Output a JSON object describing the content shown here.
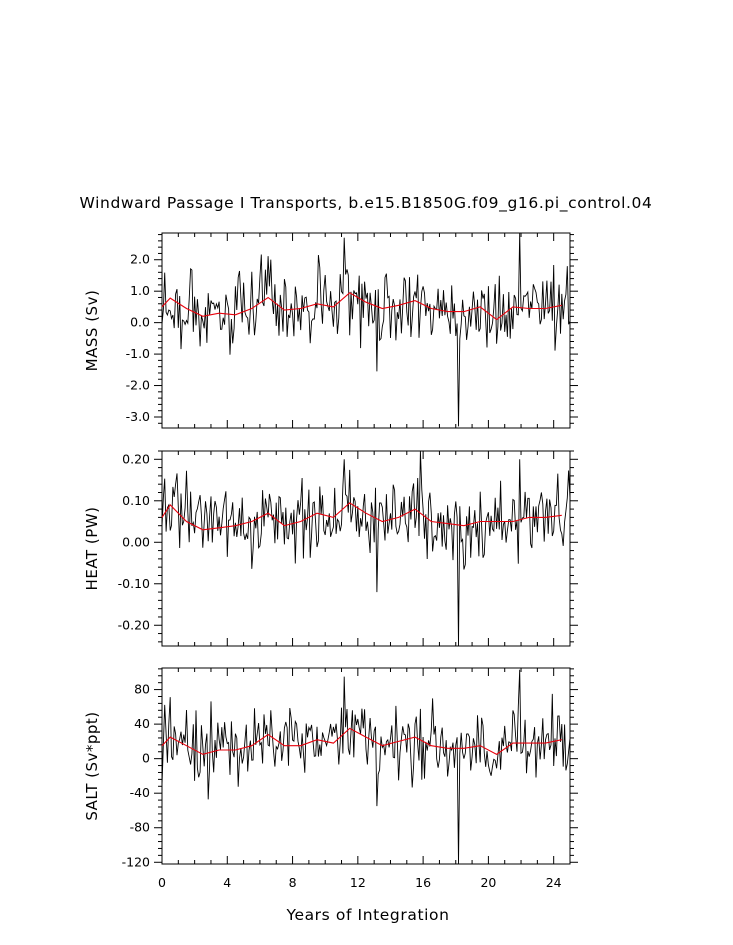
{
  "chart_data": {
    "type": "line",
    "title": "Windward Passage I Transports, b.e15.B1850G.f09_g16.pi_control.04",
    "xlabel": "Years of Integration",
    "xlim": [
      0,
      25
    ],
    "x_ticks": [
      0,
      4,
      8,
      12,
      16,
      20,
      24
    ],
    "x_tick_labels": [
      "0",
      "4",
      "8",
      "12",
      "16",
      "20",
      "24"
    ],
    "series_colors": {
      "monthly": "#000000",
      "annual_mean": "#e8000b"
    },
    "panels": [
      {
        "id": "mass",
        "ylabel": "MASS (Sv)",
        "ylim": [
          -3.35,
          2.85
        ],
        "y_ticks": [
          -3.0,
          -2.0,
          -1.0,
          0.0,
          1.0,
          2.0
        ],
        "y_tick_labels": [
          "-3.0",
          "-2.0",
          "-1.0",
          "0.0",
          "1.0",
          "2.0"
        ],
        "annual_x": [
          0,
          0.5,
          1.5,
          2.5,
          3.5,
          4.5,
          5.5,
          6.5,
          7.5,
          8.5,
          9.5,
          10.5,
          11.5,
          12.5,
          13.5,
          14.5,
          15.5,
          16.5,
          17.5,
          18.5,
          19.5,
          20.5,
          21.5,
          22.5,
          23.5,
          24.5
        ],
        "annual_values": [
          0.5,
          0.78,
          0.45,
          0.2,
          0.3,
          0.25,
          0.45,
          0.8,
          0.4,
          0.45,
          0.6,
          0.5,
          0.95,
          0.65,
          0.45,
          0.55,
          0.7,
          0.45,
          0.35,
          0.35,
          0.5,
          0.1,
          0.5,
          0.45,
          0.45,
          0.55
        ],
        "monthly_spikes": [
          [
            11.2,
            2.7
          ],
          [
            13.2,
            -1.55
          ],
          [
            18.15,
            -3.3
          ],
          [
            21.9,
            2.85
          ],
          [
            6.7,
            2.0
          ],
          [
            9.6,
            2.15
          ]
        ]
      },
      {
        "id": "heat",
        "ylabel": "HEAT (PW)",
        "ylim": [
          -0.25,
          0.22
        ],
        "y_ticks": [
          -0.2,
          -0.1,
          0.0,
          0.1,
          0.2
        ],
        "y_tick_labels": [
          "-0.20",
          "-0.10",
          "0.00",
          "0.10",
          "0.20"
        ],
        "annual_x": [
          0,
          0.5,
          1.5,
          2.5,
          3.5,
          4.5,
          5.5,
          6.5,
          7.5,
          8.5,
          9.5,
          10.5,
          11.5,
          12.5,
          13.5,
          14.5,
          15.5,
          16.5,
          17.5,
          18.5,
          19.5,
          20.5,
          21.5,
          22.5,
          23.5,
          24.5
        ],
        "annual_values": [
          0.06,
          0.09,
          0.05,
          0.03,
          0.035,
          0.04,
          0.05,
          0.07,
          0.04,
          0.05,
          0.07,
          0.06,
          0.095,
          0.07,
          0.05,
          0.06,
          0.08,
          0.05,
          0.045,
          0.04,
          0.05,
          0.05,
          0.05,
          0.06,
          0.06,
          0.065
        ],
        "monthly_spikes": [
          [
            11.2,
            0.2
          ],
          [
            13.2,
            -0.12
          ],
          [
            15.8,
            0.22
          ],
          [
            18.15,
            -0.25
          ],
          [
            21.9,
            0.2
          ]
        ]
      },
      {
        "id": "salt",
        "ylabel": "SALT (Sv*ppt)",
        "ylim": [
          -122,
          105
        ],
        "y_ticks": [
          -120,
          -80,
          -40,
          0,
          40,
          80
        ],
        "y_tick_labels": [
          "-120",
          "-80",
          "-40",
          "0",
          "40",
          "80"
        ],
        "annual_x": [
          0,
          0.5,
          1.5,
          2.5,
          3.5,
          4.5,
          5.5,
          6.5,
          7.5,
          8.5,
          9.5,
          10.5,
          11.5,
          12.5,
          13.5,
          14.5,
          15.5,
          16.5,
          17.5,
          18.5,
          19.5,
          20.5,
          21.5,
          22.5,
          23.5,
          24.5
        ],
        "annual_values": [
          15,
          25,
          15,
          5,
          10,
          10,
          15,
          28,
          15,
          15,
          22,
          18,
          35,
          25,
          15,
          20,
          25,
          15,
          12,
          12,
          15,
          5,
          18,
          18,
          18,
          22
        ],
        "monthly_spikes": [
          [
            11.2,
            95
          ],
          [
            13.2,
            -55
          ],
          [
            18.15,
            -122
          ],
          [
            21.9,
            103
          ],
          [
            23.9,
            75
          ]
        ]
      }
    ]
  }
}
